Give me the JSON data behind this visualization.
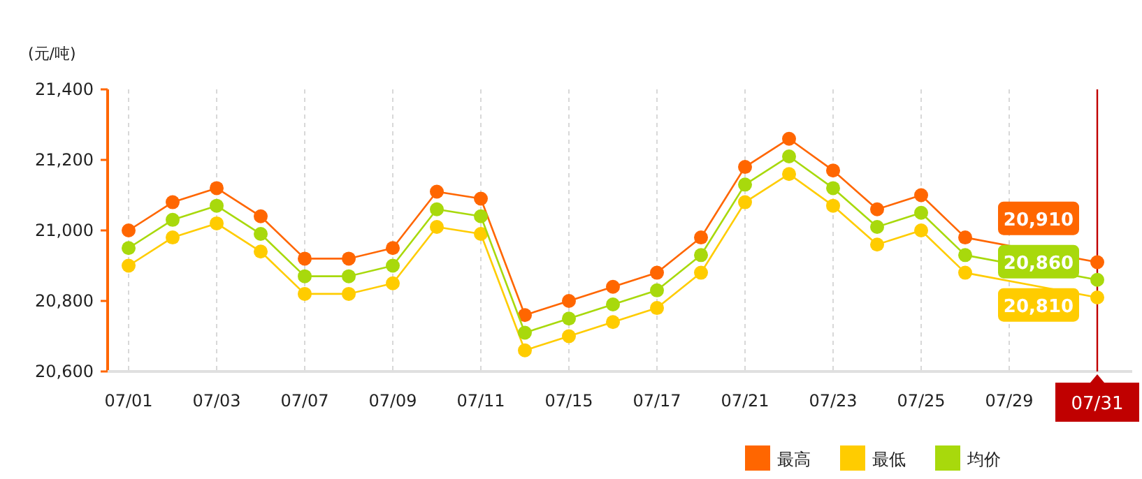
{
  "chart_data": {
    "type": "line",
    "ylabel": "(元/吨)",
    "categories": [
      "07/01",
      null,
      "07/03",
      null,
      "07/07",
      null,
      "07/09",
      null,
      "07/11",
      null,
      "07/15",
      null,
      "07/17",
      null,
      "07/21",
      null,
      "07/23",
      null,
      "07/25",
      null,
      "07/29",
      null,
      "07/31"
    ],
    "series": [
      {
        "name": "最高",
        "color": "#ff6600",
        "values": [
          21000,
          21080,
          21120,
          21040,
          20920,
          20920,
          20950,
          21110,
          21090,
          20760,
          20800,
          20840,
          20880,
          20980,
          21180,
          21260,
          21170,
          21060,
          21100,
          20980,
          null,
          null,
          20910
        ],
        "value_labels": [
          null,
          null,
          null,
          null,
          null,
          null,
          null,
          null,
          null,
          null,
          null,
          null,
          null,
          null,
          null,
          null,
          null,
          null,
          null,
          null,
          null,
          null,
          "20,910"
        ]
      },
      {
        "name": "最低",
        "color": "#ffcc00",
        "values": [
          20900,
          20980,
          21020,
          20940,
          20820,
          20820,
          20850,
          21010,
          20990,
          20660,
          20700,
          20740,
          20780,
          20880,
          21080,
          21160,
          21070,
          20960,
          21000,
          20880,
          null,
          null,
          20810
        ],
        "value_labels": [
          null,
          null,
          null,
          null,
          null,
          null,
          null,
          null,
          null,
          null,
          null,
          null,
          null,
          null,
          null,
          null,
          null,
          null,
          null,
          null,
          null,
          null,
          "20,810"
        ]
      },
      {
        "name": "均价",
        "color": "#a8d90c",
        "values": [
          20950,
          21030,
          21070,
          20990,
          20870,
          20870,
          20900,
          21060,
          21040,
          20710,
          20750,
          20790,
          20830,
          20930,
          21130,
          21210,
          21120,
          21010,
          21050,
          20930,
          null,
          null,
          20860
        ],
        "value_labels": [
          null,
          null,
          null,
          null,
          null,
          null,
          null,
          null,
          null,
          null,
          null,
          null,
          null,
          null,
          null,
          null,
          null,
          null,
          null,
          null,
          null,
          null,
          "20,860"
        ]
      }
    ],
    "ylim": [
      20600,
      21400
    ],
    "yticks": [
      {
        "value": 20600,
        "label": "20,600"
      },
      {
        "value": 20800,
        "label": "20,800"
      },
      {
        "value": 21000,
        "label": "21,000"
      },
      {
        "value": 21200,
        "label": "21,200"
      },
      {
        "value": 21400,
        "label": "21,400"
      }
    ],
    "ref_lines": [
      {
        "axis": "x",
        "value": "07/31",
        "color": "#c00000"
      }
    ],
    "grid": "x",
    "legend": "bottom right",
    "marker": "circle",
    "line_style": "solid"
  }
}
